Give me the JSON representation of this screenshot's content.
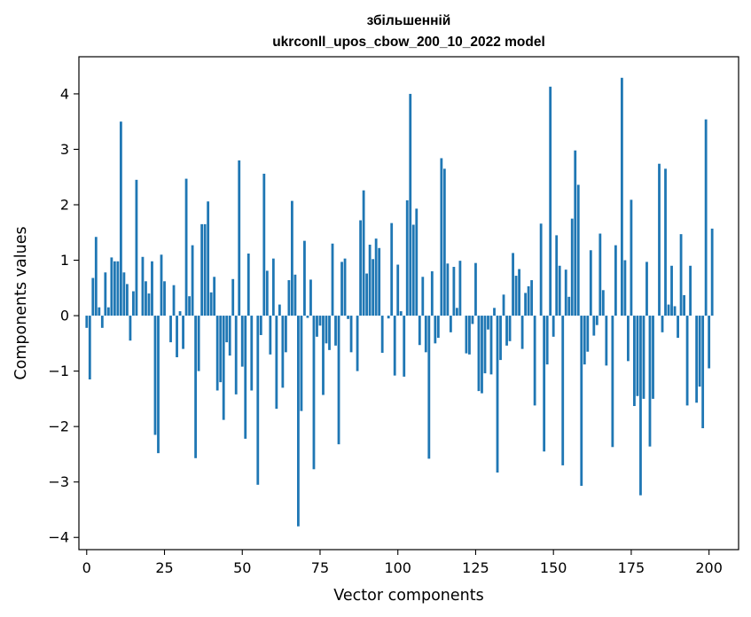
{
  "chart_data": {
    "type": "bar",
    "title_line1": "збільшенній",
    "title_line2": "ukrconll_upos_cbow_200_10_2022 model",
    "xlabel": "Vector components",
    "ylabel": "Components values",
    "xlim": [
      -2.5,
      209.5
    ],
    "ylim": [
      -4.22,
      4.67
    ],
    "xticks": [
      0,
      25,
      50,
      75,
      100,
      125,
      150,
      175,
      200
    ],
    "yticks": [
      -4,
      -3,
      -2,
      -1,
      0,
      1,
      2,
      3,
      4
    ],
    "ytick_labels": [
      "−4",
      "−3",
      "−2",
      "−1",
      "0",
      "1",
      "2",
      "3",
      "4"
    ],
    "bar_color": "#1f77b4",
    "grid": false,
    "values": [
      -0.22,
      -1.15,
      0.68,
      1.42,
      0.15,
      -0.22,
      0.78,
      0.15,
      1.05,
      0.98,
      0.98,
      3.5,
      0.78,
      0.57,
      -0.45,
      0.44,
      2.45,
      0.0,
      1.06,
      0.62,
      0.4,
      0.98,
      -2.15,
      -2.48,
      1.1,
      0.62,
      0.0,
      -0.48,
      0.55,
      -0.75,
      0.08,
      -0.6,
      2.47,
      0.35,
      1.27,
      -2.57,
      -1.0,
      1.65,
      1.65,
      2.06,
      0.42,
      0.7,
      -1.35,
      -1.2,
      -1.88,
      -0.48,
      -0.72,
      0.66,
      -1.42,
      2.8,
      -0.92,
      -2.22,
      1.12,
      -1.35,
      0.0,
      -3.05,
      -0.35,
      2.56,
      0.81,
      -0.7,
      1.03,
      -1.68,
      0.2,
      -1.3,
      -0.66,
      0.64,
      2.07,
      0.74,
      -3.8,
      -1.72,
      1.35,
      -0.04,
      0.65,
      -2.77,
      -0.38,
      -0.18,
      -1.43,
      -0.5,
      -0.62,
      1.3,
      -0.54,
      -2.32,
      0.97,
      1.03,
      -0.06,
      -0.66,
      0.0,
      -1.0,
      1.72,
      2.26,
      0.76,
      1.28,
      1.02,
      1.39,
      1.22,
      -0.67,
      0.0,
      -0.05,
      1.67,
      -1.08,
      0.92,
      0.08,
      -1.1,
      2.08,
      4.0,
      1.64,
      1.93,
      -0.53,
      0.7,
      -0.66,
      -2.58,
      0.8,
      -0.5,
      -0.4,
      2.84,
      2.65,
      0.94,
      -0.3,
      0.88,
      0.14,
      0.99,
      0.0,
      -0.68,
      -0.7,
      -0.15,
      0.95,
      -1.36,
      -1.4,
      -1.04,
      -0.25,
      -1.06,
      0.14,
      -2.83,
      -0.8,
      0.38,
      -0.54,
      -0.46,
      1.13,
      0.72,
      0.84,
      -0.6,
      0.41,
      0.53,
      0.64,
      -1.62,
      0.0,
      1.66,
      -2.45,
      -0.88,
      4.13,
      -0.38,
      1.45,
      0.9,
      -2.7,
      0.83,
      0.34,
      1.75,
      2.98,
      2.36,
      -3.07,
      -0.88,
      -0.65,
      1.18,
      -0.36,
      -0.17,
      1.48,
      0.46,
      -0.9,
      0.0,
      -2.37,
      1.27,
      0.0,
      4.29,
      1.0,
      -0.82,
      2.09,
      -1.63,
      -1.45,
      -3.24,
      -1.5,
      0.97,
      -2.36,
      -1.5,
      0.0,
      2.74,
      -0.3,
      2.65,
      0.2,
      0.9,
      0.17,
      -0.4,
      1.47,
      0.37,
      -1.62,
      0.9,
      0.0,
      -1.57,
      -1.28,
      -2.03,
      3.54,
      -0.95,
      1.57
    ]
  }
}
